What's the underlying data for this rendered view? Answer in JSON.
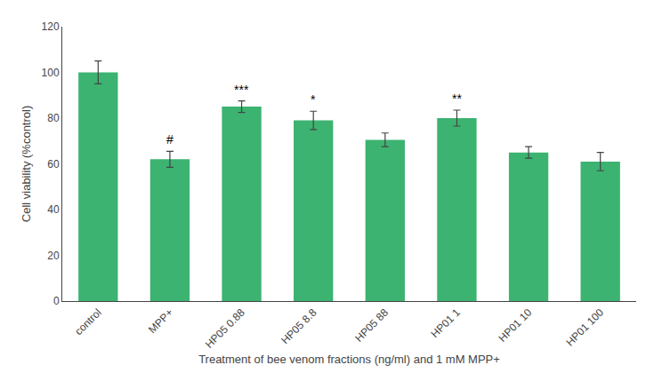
{
  "chart_data": {
    "type": "bar",
    "categories": [
      "control",
      "MPP+",
      "HP05 0.88",
      "HP05 8.8",
      "HP05 88",
      "HP01 1",
      "HP01 10",
      "HP01 100"
    ],
    "values": [
      100,
      62,
      85,
      79,
      70.5,
      80,
      65,
      61
    ],
    "errors": [
      5,
      3.5,
      2.5,
      4,
      3,
      3.5,
      2.5,
      4
    ],
    "color": "#3CB371",
    "xlabel": "Treatment of bee venom fractions (ng/ml) and 1 mM MPP+",
    "ylabel": "Cell viability (%control)",
    "annotations": [
      {
        "category": "MPP+",
        "text": "#"
      },
      {
        "category": "HP05 0.88",
        "text": "***"
      },
      {
        "category": "HP05 8.8",
        "text": "*"
      },
      {
        "category": "HP01 1",
        "text": "**"
      }
    ],
    "ylim": [
      0,
      120
    ],
    "yticks": [
      0,
      20,
      40,
      60,
      80,
      100,
      120
    ],
    "grid": false
  }
}
